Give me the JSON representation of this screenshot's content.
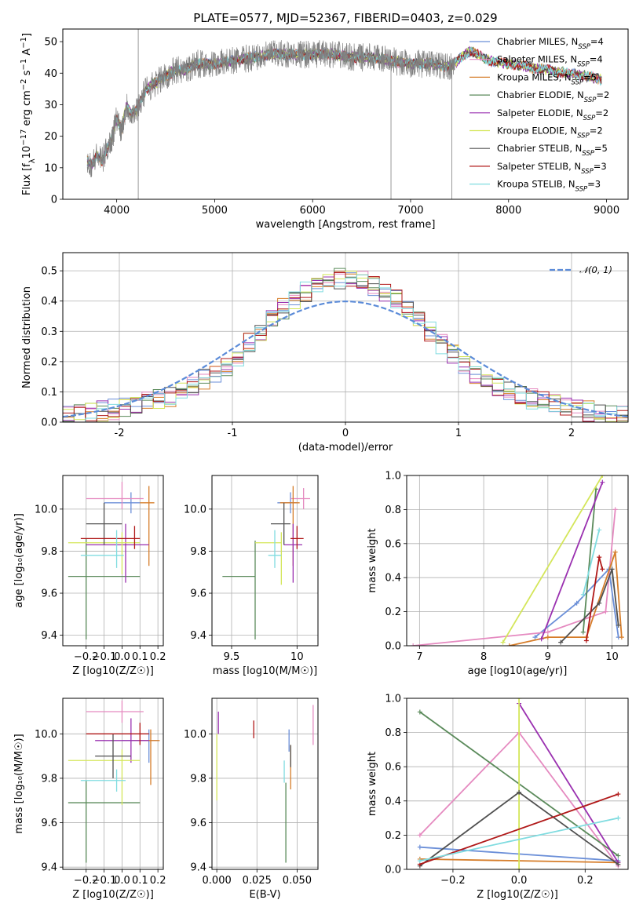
{
  "chart_data": [
    {
      "id": "spectrum",
      "type": "line",
      "title": "PLATE=0577, MJD=52367, FIBERID=0403, z=0.029",
      "xlabel": "wavelength [Angstrom, rest frame]",
      "ylabel": "Flux [f_λ 10^-17 erg cm^-2 s^-1 A^-1]",
      "xlim": [
        3450,
        9220
      ],
      "ylim": [
        0,
        54
      ],
      "xticks": [
        4000,
        5000,
        6000,
        7000,
        8000,
        9000
      ],
      "yticks": [
        0,
        10,
        20,
        30,
        40,
        50
      ],
      "data_color": "#808080",
      "data_wavelength_range": [
        3700,
        7450
      ],
      "continuum": {
        "x": [
          3700,
          3750,
          3800,
          3850,
          3900,
          3950,
          4000,
          4050,
          4100,
          4150,
          4200,
          4300,
          4400,
          4500,
          4600,
          4700,
          4800,
          5000,
          5200,
          5400,
          5600,
          5800,
          6000,
          6200,
          6400,
          6600,
          6800,
          7000,
          7200,
          7400,
          7600,
          7800,
          8000,
          8200,
          8400,
          8600,
          8800,
          8950
        ],
        "y": [
          12,
          11,
          14,
          12,
          16,
          19,
          26,
          22,
          30,
          27,
          28,
          35,
          37,
          39,
          41,
          41,
          43,
          43,
          44,
          45,
          46,
          46,
          46,
          46,
          45,
          45,
          44,
          43,
          43,
          42,
          47,
          44,
          43,
          42,
          41,
          40,
          39,
          38
        ]
      },
      "legend": [
        {
          "label": "Chabrier MILES, N",
          "sub": "SSP",
          "eq": "=4",
          "color": "#6b8fd8"
        },
        {
          "label": "Salpeter MILES, N",
          "sub": "SSP",
          "eq": "=4",
          "color": "#e58ac0"
        },
        {
          "label": "Kroupa MILES, N",
          "sub": "SSP",
          "eq": "=5",
          "color": "#d67d2a"
        },
        {
          "label": "Chabrier ELODIE, N",
          "sub": "SSP",
          "eq": "=2",
          "color": "#5a8a5a"
        },
        {
          "label": "Salpeter ELODIE, N",
          "sub": "SSP",
          "eq": "=2",
          "color": "#9a30b0"
        },
        {
          "label": "Kroupa ELODIE, N",
          "sub": "SSP",
          "eq": "=2",
          "color": "#d4e65a"
        },
        {
          "label": "Chabrier STELIB, N",
          "sub": "SSP",
          "eq": "=5",
          "color": "#505050"
        },
        {
          "label": "Salpeter STELIB, N",
          "sub": "SSP",
          "eq": "=3",
          "color": "#b01818"
        },
        {
          "label": "Kroupa STELIB, N",
          "sub": "SSP",
          "eq": "=3",
          "color": "#80dce0"
        }
      ],
      "legend_position": "upper right"
    },
    {
      "id": "residuals",
      "type": "histogram",
      "xlabel": "(data-model)/error",
      "ylabel": "Normed distribution",
      "xlim": [
        -2.5,
        2.5
      ],
      "ylim": [
        0,
        0.56
      ],
      "xticks": [
        -2,
        -1,
        0,
        1,
        2
      ],
      "yticks": [
        0.0,
        0.1,
        0.2,
        0.3,
        0.4,
        0.5
      ],
      "bin_width": 0.1,
      "envelope": {
        "x": [
          -2.5,
          -2.0,
          -1.5,
          -1.2,
          -1.0,
          -0.8,
          -0.6,
          -0.4,
          -0.2,
          0.0,
          0.2,
          0.4,
          0.6,
          0.8,
          1.0,
          1.2,
          1.5,
          2.0,
          2.5
        ],
        "y": [
          0.015,
          0.045,
          0.09,
          0.15,
          0.2,
          0.28,
          0.36,
          0.42,
          0.46,
          0.48,
          0.46,
          0.42,
          0.36,
          0.28,
          0.2,
          0.15,
          0.09,
          0.045,
          0.015
        ]
      },
      "reference_label": "𝒩(0, 1)",
      "reference_color": "#5b8bd8"
    },
    {
      "id": "age_vs_Z",
      "type": "errorbar",
      "xlabel": "Z [log10(Z/Z☉)]",
      "ylabel": "age [log10(age/yr)]",
      "xlim": [
        -0.33,
        0.23
      ],
      "ylim": [
        9.35,
        10.16
      ],
      "xticks": [
        -0.2,
        -0.1,
        0.0,
        0.1,
        0.2
      ],
      "xtick_labels": [
        "−0.2",
        "−0.1",
        "0.0",
        "0.1",
        "0.2"
      ],
      "yticks": [
        9.4,
        9.6,
        9.8,
        10.0
      ],
      "points": [
        {
          "x": 0.05,
          "y": 10.03,
          "xe": [
            0.15,
            0.05
          ],
          "ye": [
            0.05,
            0.05
          ],
          "color": "#6b8fd8"
        },
        {
          "x": 0.0,
          "y": 10.05,
          "xe": [
            0.2,
            0.12
          ],
          "ye": [
            0.05,
            0.08
          ],
          "color": "#e58ac0"
        },
        {
          "x": 0.15,
          "y": 10.03,
          "xe": [
            0.05,
            0.03
          ],
          "ye": [
            0.3,
            0.08
          ],
          "color": "#d67d2a"
        },
        {
          "x": -0.2,
          "y": 9.68,
          "xe": [
            0.1,
            0.3
          ],
          "ye": [
            0.3,
            0.18
          ],
          "color": "#5a8a5a"
        },
        {
          "x": 0.02,
          "y": 9.83,
          "xe": [
            0.22,
            0.13
          ],
          "ye": [
            0.18,
            0.1
          ],
          "color": "#9a30b0"
        },
        {
          "x": 0.0,
          "y": 9.84,
          "xe": [
            0.3,
            0.1
          ],
          "ye": [
            0.15,
            0.05
          ],
          "color": "#d4e65a"
        },
        {
          "x": -0.1,
          "y": 9.93,
          "xe": [
            0.1,
            0.1
          ],
          "ye": [
            0.1,
            0.1
          ],
          "color": "#505050"
        },
        {
          "x": 0.07,
          "y": 9.86,
          "xe": [
            0.3,
            0.03
          ],
          "ye": [
            0.05,
            0.06
          ],
          "color": "#b01818"
        },
        {
          "x": -0.03,
          "y": 9.78,
          "xe": [
            0.2,
            0.04
          ],
          "ye": [
            0.06,
            0.12
          ],
          "color": "#80dce0"
        }
      ]
    },
    {
      "id": "age_vs_mass",
      "type": "errorbar",
      "xlabel": "mass [log10(M/M☉)]",
      "ylabel": "",
      "xlim": [
        9.35,
        10.16
      ],
      "ylim": [
        9.35,
        10.16
      ],
      "xticks": [
        9.5,
        10.0
      ],
      "yticks": [
        9.4,
        9.6,
        9.8,
        10.0
      ],
      "points": [
        {
          "x": 9.95,
          "y": 10.03,
          "xe": [
            0.1,
            0.05
          ],
          "ye": [
            0.05,
            0.05
          ],
          "color": "#6b8fd8"
        },
        {
          "x": 10.05,
          "y": 10.05,
          "xe": [
            0.1,
            0.05
          ],
          "ye": [
            0.05,
            0.05
          ],
          "color": "#e58ac0"
        },
        {
          "x": 9.97,
          "y": 10.03,
          "xe": [
            0.1,
            0.05
          ],
          "ye": [
            0.3,
            0.08
          ],
          "color": "#d67d2a"
        },
        {
          "x": 9.68,
          "y": 9.68,
          "xe": [
            0.25,
            0.0
          ],
          "ye": [
            0.3,
            0.17
          ],
          "color": "#5a8a5a"
        },
        {
          "x": 9.97,
          "y": 9.83,
          "xe": [
            0.07,
            0.07
          ],
          "ye": [
            0.18,
            0.1
          ],
          "color": "#9a30b0"
        },
        {
          "x": 9.88,
          "y": 9.84,
          "xe": [
            0.2,
            0.0
          ],
          "ye": [
            0.2,
            0.05
          ],
          "color": "#d4e65a"
        },
        {
          "x": 9.9,
          "y": 9.93,
          "xe": [
            0.1,
            0.05
          ],
          "ye": [
            0.1,
            0.1
          ],
          "color": "#505050"
        },
        {
          "x": 10.0,
          "y": 9.86,
          "xe": [
            0.05,
            0.05
          ],
          "ye": [
            0.05,
            0.06
          ],
          "color": "#b01818"
        },
        {
          "x": 9.83,
          "y": 9.78,
          "xe": [
            0.05,
            0.05
          ],
          "ye": [
            0.06,
            0.12
          ],
          "color": "#80dce0"
        }
      ]
    },
    {
      "id": "weight_vs_age",
      "type": "line",
      "xlabel": "age [log10(age/yr)]",
      "ylabel": "mass weight",
      "xlim": [
        6.8,
        10.25
      ],
      "ylim": [
        0,
        1.0
      ],
      "xticks": [
        7,
        8,
        9,
        10
      ],
      "yticks": [
        0.0,
        0.2,
        0.4,
        0.6,
        0.8,
        1.0
      ],
      "series": [
        {
          "color": "#6b8fd8",
          "x": [
            8.8,
            9.45,
            9.95,
            10.1
          ],
          "y": [
            0.05,
            0.25,
            0.45,
            0.05
          ]
        },
        {
          "color": "#e58ac0",
          "x": [
            6.9,
            9.0,
            9.9,
            10.05
          ],
          "y": [
            0.0,
            0.08,
            0.2,
            0.8
          ]
        },
        {
          "color": "#d67d2a",
          "x": [
            8.4,
            9.0,
            9.6,
            10.05,
            10.15
          ],
          "y": [
            0.0,
            0.05,
            0.05,
            0.55,
            0.05
          ]
        },
        {
          "color": "#5a8a5a",
          "x": [
            9.55,
            9.75
          ],
          "y": [
            0.08,
            0.92
          ]
        },
        {
          "color": "#9a30b0",
          "x": [
            8.9,
            9.85
          ],
          "y": [
            0.04,
            0.96
          ]
        },
        {
          "color": "#d4e65a",
          "x": [
            8.3,
            9.85
          ],
          "y": [
            0.02,
            1.0
          ]
        },
        {
          "color": "#505050",
          "x": [
            9.2,
            9.8,
            10.0,
            10.1
          ],
          "y": [
            0.02,
            0.25,
            0.45,
            0.12
          ]
        },
        {
          "color": "#b01818",
          "x": [
            9.6,
            9.8,
            9.85
          ],
          "y": [
            0.03,
            0.52,
            0.45
          ]
        },
        {
          "color": "#80dce0",
          "x": [
            9.55,
            9.8
          ],
          "y": [
            0.3,
            0.68
          ]
        }
      ]
    },
    {
      "id": "mass_vs_Z",
      "type": "errorbar",
      "xlabel": "Z [log10(Z/Z☉)]",
      "ylabel": "mass [log10(M/M☉)]",
      "xlim": [
        -0.33,
        0.23
      ],
      "ylim": [
        9.39,
        10.16
      ],
      "xticks": [
        -0.2,
        -0.1,
        0.0,
        0.1,
        0.2
      ],
      "xtick_labels": [
        "−0.2",
        "−0.1",
        "0.0",
        "0.1",
        "0.2"
      ],
      "yticks": [
        9.4,
        9.6,
        9.8,
        10.0
      ],
      "points": [
        {
          "x": 0.15,
          "y": 9.97,
          "xe": [
            0.15,
            0.05
          ],
          "ye": [
            0.1,
            0.05
          ],
          "color": "#6b8fd8"
        },
        {
          "x": 0.0,
          "y": 10.1,
          "xe": [
            0.2,
            0.12
          ],
          "ye": [
            0.05,
            0.05
          ],
          "color": "#e58ac0"
        },
        {
          "x": 0.16,
          "y": 9.97,
          "xe": [
            0.1,
            0.05
          ],
          "ye": [
            0.2,
            0.05
          ],
          "color": "#d67d2a"
        },
        {
          "x": -0.2,
          "y": 9.69,
          "xe": [
            0.1,
            0.3
          ],
          "ye": [
            0.27,
            0.1
          ],
          "color": "#5a8a5a"
        },
        {
          "x": 0.05,
          "y": 9.97,
          "xe": [
            0.2,
            0.1
          ],
          "ye": [
            0.1,
            0.1
          ],
          "color": "#9a30b0"
        },
        {
          "x": 0.0,
          "y": 9.88,
          "xe": [
            0.3,
            0.1
          ],
          "ye": [
            0.2,
            0.05
          ],
          "color": "#d4e65a"
        },
        {
          "x": -0.05,
          "y": 9.9,
          "xe": [
            0.1,
            0.1
          ],
          "ye": [
            0.1,
            0.1
          ],
          "color": "#505050"
        },
        {
          "x": 0.1,
          "y": 10.0,
          "xe": [
            0.3,
            0.05
          ],
          "ye": [
            0.05,
            0.05
          ],
          "color": "#b01818"
        },
        {
          "x": -0.03,
          "y": 9.79,
          "xe": [
            0.2,
            0.05
          ],
          "ye": [
            0.05,
            0.05
          ],
          "color": "#80dce0"
        }
      ]
    },
    {
      "id": "mass_vs_ebv",
      "type": "errorbar",
      "xlabel": "E(B-V)",
      "ylabel": "",
      "xlim": [
        -0.003,
        0.063
      ],
      "ylim": [
        9.39,
        10.16
      ],
      "xticks": [
        0.0,
        0.025,
        0.05
      ],
      "xtick_labels": [
        "0.000",
        "0.025",
        "0.050"
      ],
      "yticks": [
        9.4,
        9.6,
        9.8,
        10.0
      ],
      "points": [
        {
          "x": 0.045,
          "y": 9.97,
          "xe": [
            0,
            0
          ],
          "ye": [
            0.05,
            0.05
          ],
          "color": "#6b8fd8"
        },
        {
          "x": 0.06,
          "y": 10.05,
          "xe": [
            0,
            0
          ],
          "ye": [
            0.1,
            0.08
          ],
          "color": "#e58ac0"
        },
        {
          "x": 0.046,
          "y": 9.85,
          "xe": [
            0,
            0
          ],
          "ye": [
            0.1,
            0.1
          ],
          "color": "#d67d2a"
        },
        {
          "x": 0.043,
          "y": 9.6,
          "xe": [
            0,
            0
          ],
          "ye": [
            0.18,
            0.18
          ],
          "color": "#5a8a5a"
        },
        {
          "x": 0.001,
          "y": 10.05,
          "xe": [
            0,
            0
          ],
          "ye": [
            0.05,
            0.05
          ],
          "color": "#9a30b0"
        },
        {
          "x": 0.0,
          "y": 9.85,
          "xe": [
            0,
            0
          ],
          "ye": [
            0.15,
            0.15
          ],
          "color": "#d4e65a"
        },
        {
          "x": 0.046,
          "y": 9.9,
          "xe": [
            0,
            0
          ],
          "ye": [
            0.05,
            0.05
          ],
          "color": "#505050"
        },
        {
          "x": 0.023,
          "y": 10.02,
          "xe": [
            0,
            0
          ],
          "ye": [
            0.04,
            0.04
          ],
          "color": "#b01818"
        },
        {
          "x": 0.042,
          "y": 9.83,
          "xe": [
            0,
            0
          ],
          "ye": [
            0.05,
            0.05
          ],
          "color": "#80dce0"
        }
      ]
    },
    {
      "id": "weight_vs_Z",
      "type": "line",
      "xlabel": "Z [log10(Z/Z☉)]",
      "ylabel": "mass weight",
      "xlim": [
        -0.34,
        0.33
      ],
      "ylim": [
        0,
        1.0
      ],
      "xticks": [
        -0.2,
        0.0,
        0.2
      ],
      "xtick_labels": [
        "−0.2",
        "0.0",
        "0.2"
      ],
      "yticks": [
        0.0,
        0.2,
        0.4,
        0.6,
        0.8,
        1.0
      ],
      "series": [
        {
          "color": "#6b8fd8",
          "x": [
            -0.3,
            0.3
          ],
          "y": [
            0.13,
            0.05
          ]
        },
        {
          "color": "#e58ac0",
          "x": [
            -0.3,
            0.0,
            0.3
          ],
          "y": [
            0.2,
            0.8,
            0.02
          ]
        },
        {
          "color": "#d67d2a",
          "x": [
            -0.3,
            0.3
          ],
          "y": [
            0.06,
            0.04
          ]
        },
        {
          "color": "#5a8a5a",
          "x": [
            -0.3,
            0.3
          ],
          "y": [
            0.92,
            0.08
          ]
        },
        {
          "color": "#9a30b0",
          "x": [
            0.0,
            0.3
          ],
          "y": [
            0.97,
            0.04
          ]
        },
        {
          "color": "#d4e65a",
          "x": [
            0.0,
            0.0
          ],
          "y": [
            0.0,
            1.0
          ]
        },
        {
          "color": "#505050",
          "x": [
            -0.3,
            0.0,
            0.3
          ],
          "y": [
            0.02,
            0.45,
            0.03
          ]
        },
        {
          "color": "#b01818",
          "x": [
            -0.3,
            0.3
          ],
          "y": [
            0.03,
            0.44
          ]
        },
        {
          "color": "#80dce0",
          "x": [
            -0.3,
            0.3
          ],
          "y": [
            0.05,
            0.3
          ]
        }
      ]
    }
  ]
}
